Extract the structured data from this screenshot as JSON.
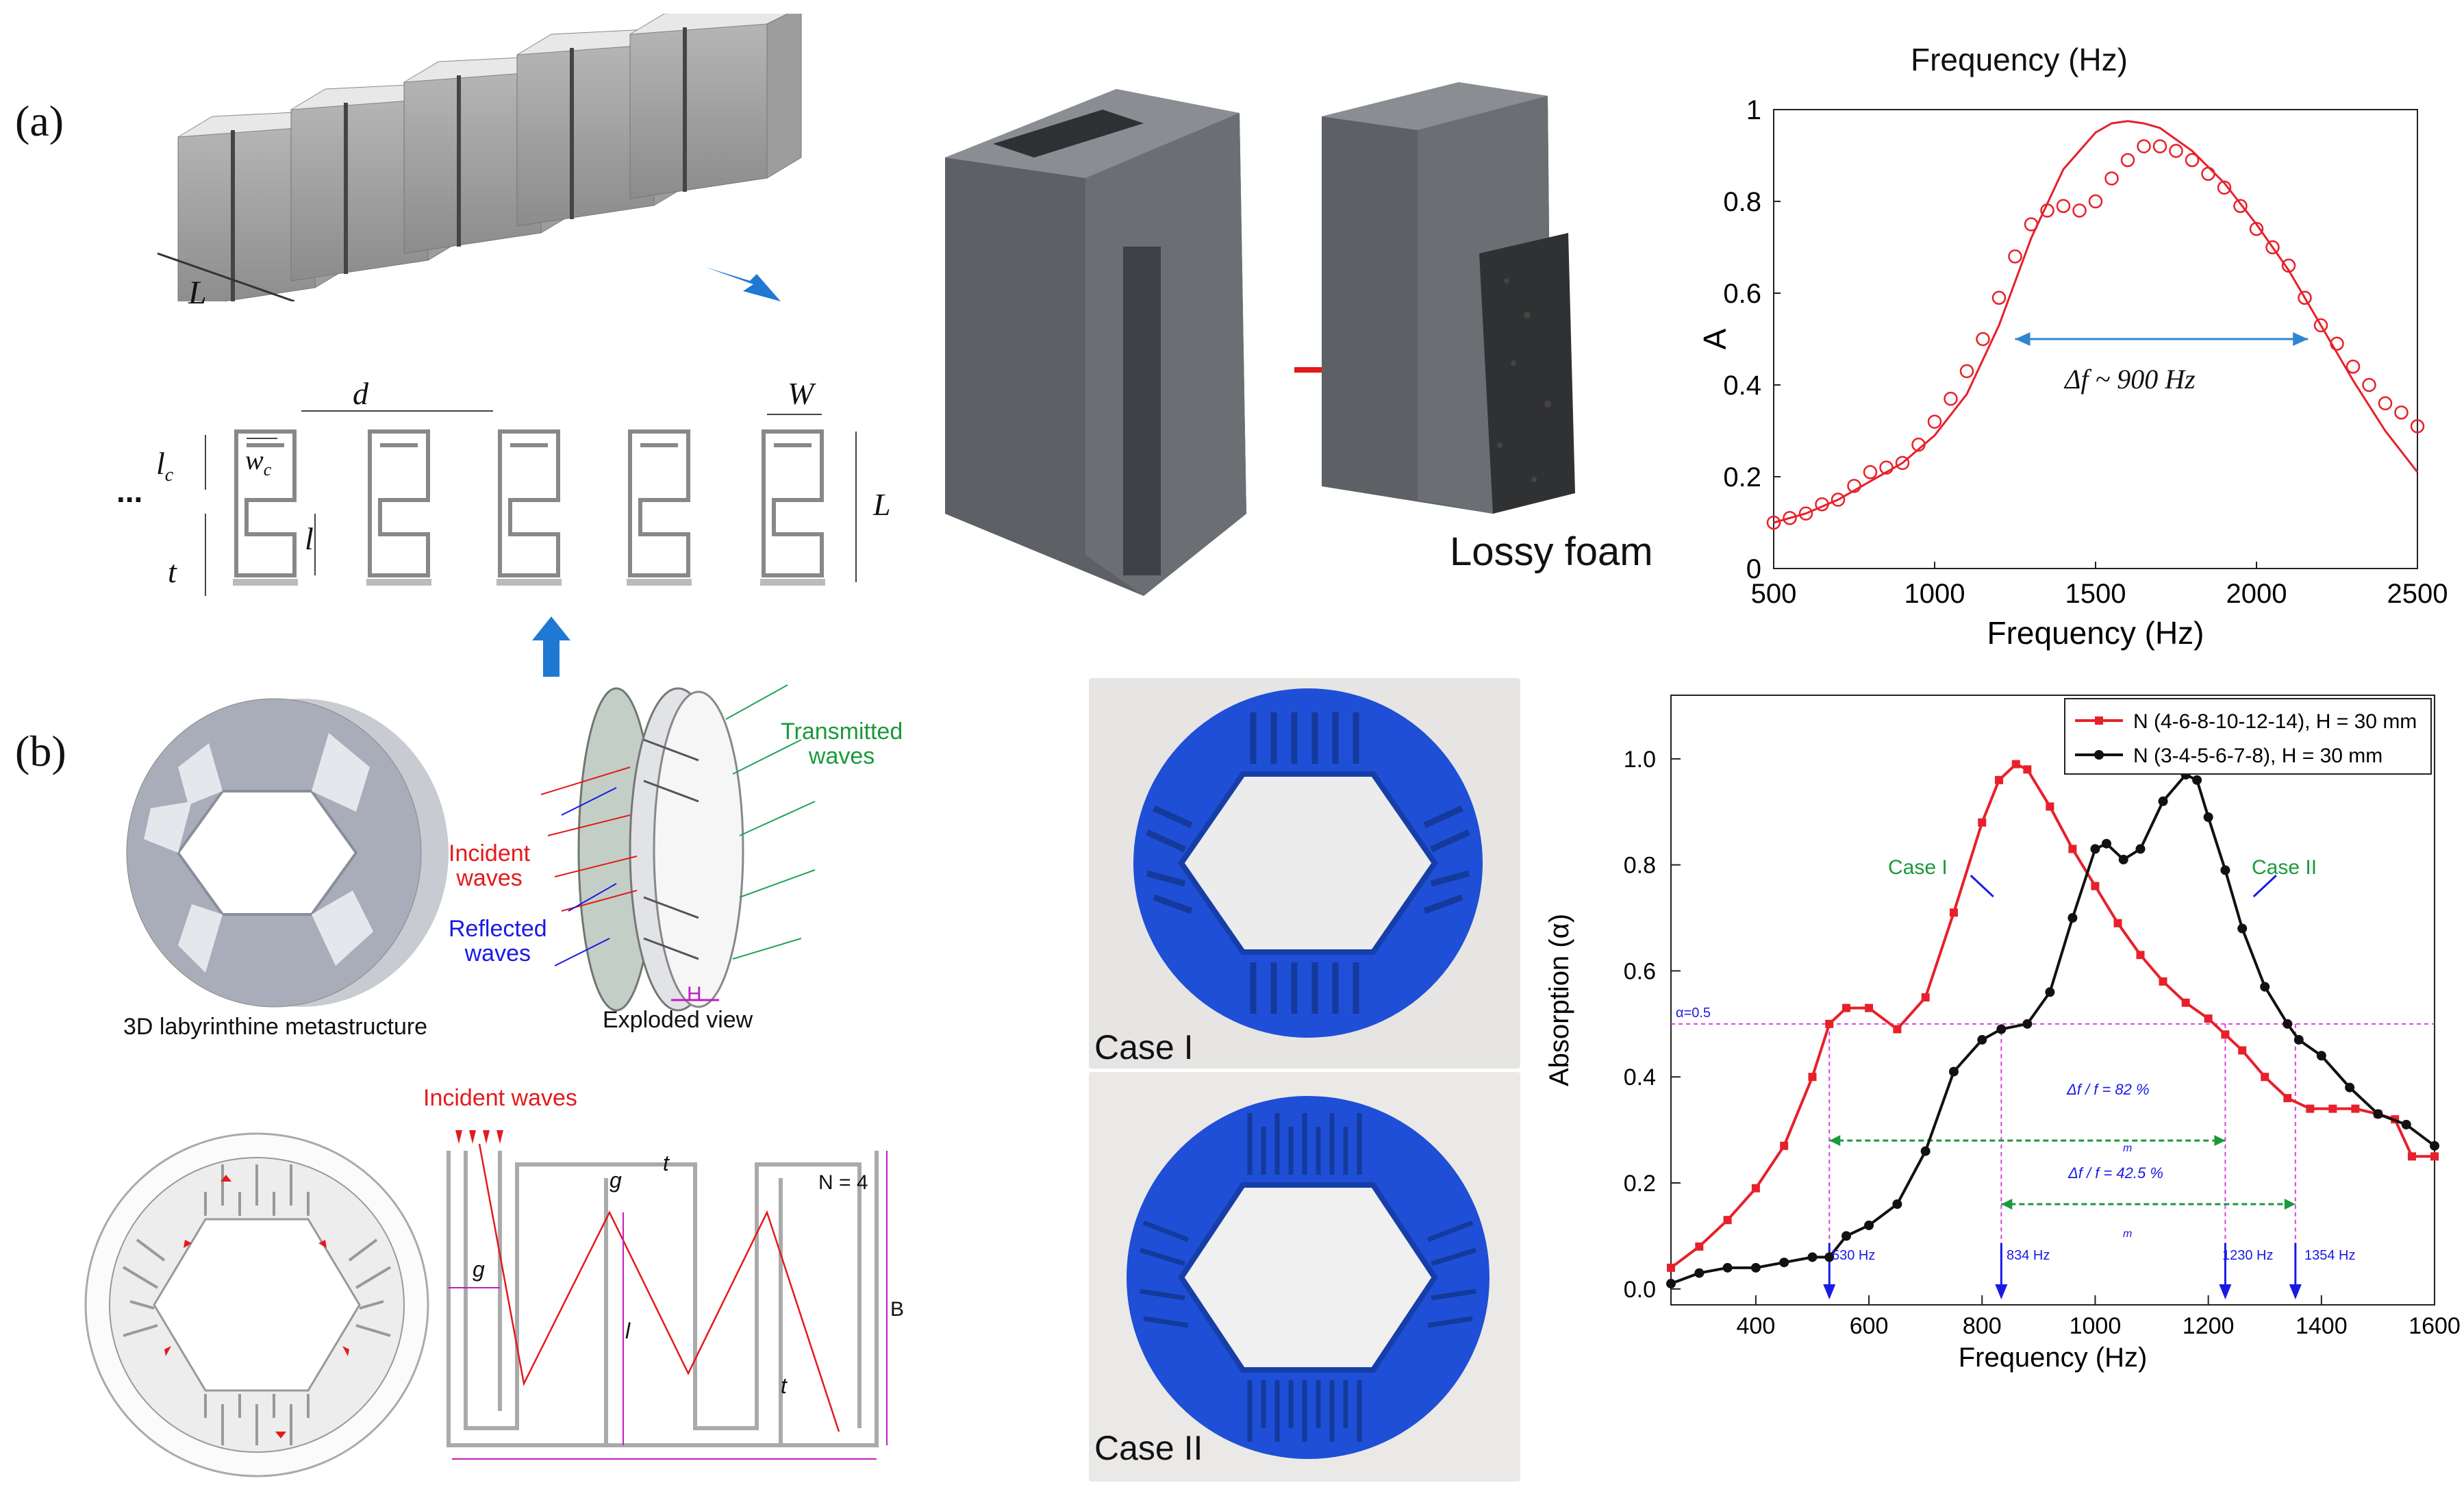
{
  "panel_labels": {
    "a": "(a)",
    "b": "(b)"
  },
  "schematic_a": {
    "labels": {
      "L": "L",
      "d": "d",
      "W": "W",
      "lc": "l",
      "lc_sub": "c",
      "wc": "w",
      "wc_sub": "c",
      "l": "l",
      "t": "t",
      "dots": "...",
      "L_right": "L"
    }
  },
  "photo_a": {
    "foam_label": "Lossy foam"
  },
  "chart_a_title_top": "Frequency (Hz)",
  "chart_a_delta": "Δf ~ 900 Hz",
  "chart_b_annotations": {
    "case1": "Case I",
    "case2": "Case II",
    "alpha_line": "α=0.5",
    "bw1": "Δf / f  = 82 %",
    "bw1_sub": "m",
    "bw2": "Δf / f  = 42.5 %",
    "bw2_sub": "m",
    "f530": "530 Hz",
    "f834": "834 Hz",
    "f1230": "1230 Hz",
    "f1354": "1354 Hz"
  },
  "panel_b": {
    "metastructure_caption": "3D labyrinthine metastructure",
    "exploded_caption": "Exploded view",
    "transmitted": [
      "Transmitted",
      "waves"
    ],
    "incident": [
      "Incident",
      "waves"
    ],
    "reflected": [
      "Reflected",
      "waves"
    ],
    "H": "H",
    "case1_photo": "Case I",
    "case2_photo": "Case II",
    "bottom_incident": "Incident waves",
    "N": "N = 4",
    "g": "g",
    "t": "t",
    "l": "l",
    "B": "B"
  },
  "chart_data": [
    {
      "type": "line",
      "title": "",
      "xlabel": "Frequency (Hz)",
      "ylabel": "A",
      "xlim": [
        500,
        2500
      ],
      "ylim": [
        0,
        1
      ],
      "xticks": [
        "500",
        "1000",
        "1500",
        "2000",
        "2500"
      ],
      "yticks": [
        "0",
        "0.2",
        "0.4",
        "0.6",
        "0.8",
        "1"
      ],
      "color": "#e8202a",
      "series": [
        {
          "style": "line",
          "x": [
            500,
            600,
            700,
            800,
            900,
            1000,
            1100,
            1200,
            1300,
            1400,
            1500,
            1550,
            1600,
            1650,
            1700,
            1800,
            1900,
            2000,
            2100,
            2200,
            2300,
            2400,
            2500
          ],
          "y": [
            0.1,
            0.12,
            0.15,
            0.19,
            0.23,
            0.29,
            0.38,
            0.53,
            0.72,
            0.87,
            0.95,
            0.97,
            0.975,
            0.97,
            0.96,
            0.91,
            0.84,
            0.75,
            0.65,
            0.53,
            0.41,
            0.3,
            0.21
          ]
        },
        {
          "style": "markers",
          "x": [
            500,
            550,
            600,
            650,
            700,
            750,
            800,
            850,
            900,
            950,
            1000,
            1050,
            1100,
            1150,
            1200,
            1250,
            1300,
            1350,
            1400,
            1450,
            1500,
            1550,
            1600,
            1650,
            1700,
            1750,
            1800,
            1850,
            1900,
            1950,
            2000,
            2050,
            2100,
            2150,
            2200,
            2250,
            2300,
            2350,
            2400,
            2450,
            2500
          ],
          "y": [
            0.1,
            0.11,
            0.12,
            0.14,
            0.15,
            0.18,
            0.21,
            0.22,
            0.23,
            0.27,
            0.32,
            0.37,
            0.43,
            0.5,
            0.59,
            0.68,
            0.75,
            0.78,
            0.79,
            0.78,
            0.8,
            0.85,
            0.89,
            0.92,
            0.92,
            0.91,
            0.89,
            0.86,
            0.83,
            0.79,
            0.74,
            0.7,
            0.66,
            0.59,
            0.53,
            0.49,
            0.44,
            0.4,
            0.36,
            0.34,
            0.31
          ]
        }
      ]
    },
    {
      "type": "line",
      "title": "",
      "xlabel": "Frequency (Hz)",
      "ylabel": "Absorption (α)",
      "xlim": [
        250,
        1600
      ],
      "ylim": [
        -0.03,
        1.12
      ],
      "xticks": [
        "400",
        "600",
        "800",
        "1000",
        "1200",
        "1400",
        "1600"
      ],
      "yticks": [
        "0.0",
        "0.2",
        "0.4",
        "0.6",
        "0.8",
        "1.0"
      ],
      "legend_position": "top-right",
      "series": [
        {
          "name": "N (4-6-8-10-12-14), H = 30 mm",
          "color": "#e8202a",
          "x": [
            250,
            300,
            350,
            400,
            450,
            500,
            530,
            560,
            600,
            650,
            700,
            750,
            800,
            830,
            860,
            880,
            920,
            960,
            1000,
            1040,
            1080,
            1120,
            1160,
            1200,
            1230,
            1260,
            1300,
            1340,
            1380,
            1420,
            1460,
            1500,
            1530,
            1560,
            1600
          ],
          "y": [
            0.04,
            0.08,
            0.13,
            0.19,
            0.27,
            0.4,
            0.5,
            0.53,
            0.53,
            0.49,
            0.55,
            0.71,
            0.88,
            0.96,
            0.99,
            0.98,
            0.91,
            0.83,
            0.76,
            0.69,
            0.63,
            0.58,
            0.54,
            0.51,
            0.48,
            0.45,
            0.4,
            0.36,
            0.34,
            0.34,
            0.34,
            0.33,
            0.32,
            0.25,
            0.25
          ]
        },
        {
          "name": "N (3-4-5-6-7-8), H = 30 mm",
          "color": "#111111",
          "x": [
            250,
            300,
            350,
            400,
            450,
            500,
            530,
            560,
            600,
            650,
            700,
            750,
            800,
            834,
            880,
            920,
            960,
            1000,
            1020,
            1050,
            1080,
            1120,
            1160,
            1180,
            1200,
            1230,
            1260,
            1300,
            1340,
            1360,
            1400,
            1450,
            1500,
            1550,
            1600
          ],
          "y": [
            0.01,
            0.03,
            0.04,
            0.04,
            0.05,
            0.06,
            0.06,
            0.1,
            0.12,
            0.16,
            0.26,
            0.41,
            0.47,
            0.49,
            0.5,
            0.56,
            0.7,
            0.83,
            0.84,
            0.81,
            0.83,
            0.92,
            0.97,
            0.96,
            0.89,
            0.79,
            0.68,
            0.57,
            0.5,
            0.47,
            0.44,
            0.38,
            0.33,
            0.31,
            0.27
          ]
        }
      ]
    }
  ]
}
